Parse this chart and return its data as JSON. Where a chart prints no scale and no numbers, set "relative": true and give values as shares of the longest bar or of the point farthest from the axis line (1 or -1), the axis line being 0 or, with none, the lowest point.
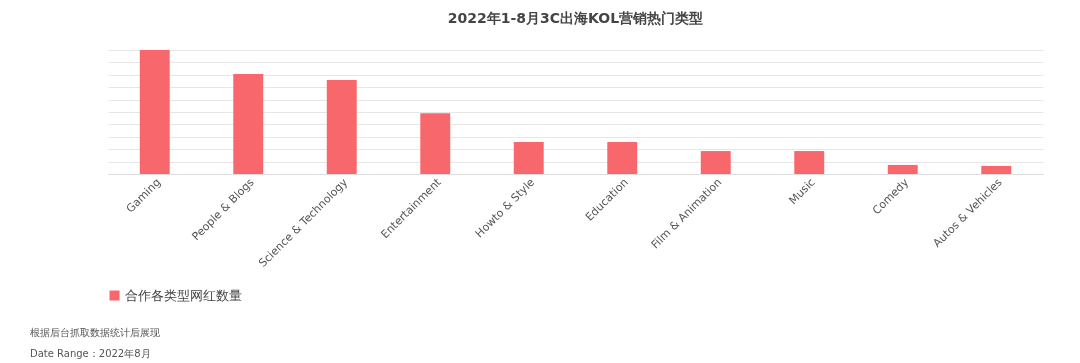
{
  "chart_data": {
    "type": "bar",
    "title": "2022年1-8月3C出海KOL营销热门类型",
    "relative": true,
    "grid": "y",
    "legend": "bottom",
    "categories": [
      "Gaming",
      "People & Blogs",
      "Science & Technology",
      "Entertainment",
      "Howto & Style",
      "Education",
      "Film & Animation",
      "Music",
      "Comedy",
      "Autos & Vehicles"
    ],
    "series": [
      {
        "name": "合作各类型网红数量",
        "color": "#f8676b",
        "values": [
          1,
          0.806,
          0.758,
          0.49,
          0.258,
          0.258,
          0.185,
          0.185,
          0.073,
          0.065
        ]
      }
    ],
    "annotations": [
      "根据后台抓取数据统计后展现",
      "Date Range：2022年8月"
    ]
  }
}
